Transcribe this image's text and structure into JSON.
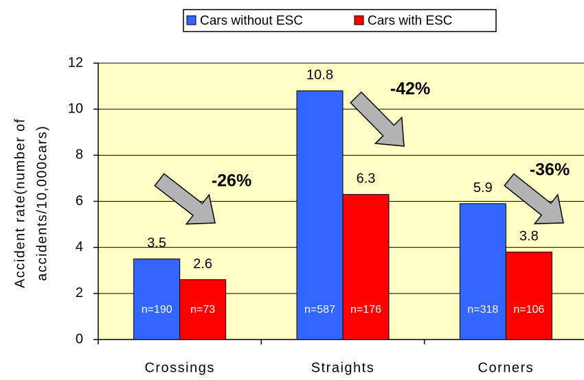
{
  "chart_data": {
    "type": "bar",
    "ylabel_lines": [
      "Accident rate(number of",
      "accidents/10,000cars)"
    ],
    "categories": [
      "Crossings",
      "Straights",
      "Corners"
    ],
    "series": [
      {
        "name": "Cars without ESC",
        "color": "#3366ff",
        "values": [
          3.5,
          10.8,
          5.9
        ],
        "n_labels": [
          "n=190",
          "n=587",
          "n=318"
        ]
      },
      {
        "name": "Cars with ESC",
        "color": "#ff0000",
        "values": [
          2.6,
          6.3,
          3.8
        ],
        "n_labels": [
          "n=73",
          "n=176",
          "n=106"
        ]
      }
    ],
    "reduction_labels": [
      "-26%",
      "-42%",
      "-36%"
    ],
    "ylim": [
      0,
      12
    ],
    "yticks": [
      0,
      2,
      4,
      6,
      8,
      10,
      12
    ],
    "grid": true,
    "plot_background": "#ffffc6",
    "legend": "top"
  }
}
